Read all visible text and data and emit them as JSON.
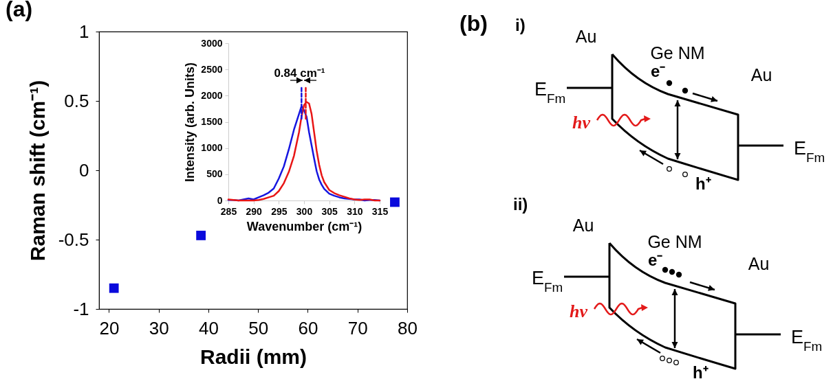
{
  "chart_data": [
    {
      "type": "scatter",
      "title": "(a)",
      "xlabel": "Radii (mm)",
      "ylabel": "Raman shift (cm⁻¹)",
      "xlim": [
        18,
        80
      ],
      "xticks": [
        20,
        30,
        40,
        50,
        60,
        70,
        80
      ],
      "ylim": [
        -1,
        1
      ],
      "yticks": [
        -1,
        -0.5,
        0,
        0.5,
        1
      ],
      "x": [
        21,
        38.5,
        77.5
      ],
      "marker": "square",
      "grid": false,
      "series": [
        {
          "color": "#0a0adc",
          "values": [
            -0.85,
            -0.47,
            -0.23
          ]
        }
      ]
    },
    {
      "type": "line",
      "xlabel": "Wavenumber (cm⁻¹)",
      "ylabel": "Intensity (arb. Units)",
      "xlim": [
        285,
        315
      ],
      "xticks": [
        285,
        290,
        295,
        300,
        305,
        310,
        315
      ],
      "ylim": [
        0,
        3000
      ],
      "yticks": [
        0,
        500,
        1000,
        1500,
        2000,
        2500,
        3000
      ],
      "grid": false,
      "annotations": [
        "0.84 cm⁻¹"
      ],
      "series": [
        {
          "color": "#1515e0",
          "x": [
            285,
            286,
            287,
            288,
            289,
            290,
            291,
            292,
            293,
            294,
            295,
            296,
            297,
            298,
            299,
            299.5,
            300,
            300.5,
            301,
            301.5,
            302,
            302.5,
            303,
            303.5,
            304,
            305,
            306,
            307,
            308,
            309,
            310,
            311,
            312,
            313,
            314,
            315
          ],
          "values": [
            10,
            10,
            0,
            20,
            40,
            20,
            60,
            100,
            150,
            230,
            420,
            650,
            980,
            1350,
            1650,
            1800,
            1720,
            1600,
            1300,
            1050,
            800,
            560,
            400,
            300,
            220,
            130,
            90,
            60,
            40,
            30,
            20,
            20,
            0,
            10,
            10,
            0
          ]
        },
        {
          "color": "#e81515",
          "x": [
            285,
            286,
            287,
            288,
            289,
            290,
            291,
            292,
            293,
            294,
            295,
            296,
            297,
            298,
            299,
            299.5,
            300,
            300.5,
            301,
            301.5,
            302,
            302.5,
            303,
            303.5,
            304,
            305,
            306,
            307,
            308,
            309,
            310,
            311,
            312,
            313,
            314,
            315
          ],
          "values": [
            20,
            10,
            0,
            0,
            0,
            0,
            10,
            30,
            60,
            90,
            180,
            330,
            550,
            850,
            1300,
            1600,
            1820,
            1880,
            1850,
            1650,
            1300,
            950,
            680,
            480,
            350,
            200,
            140,
            100,
            70,
            40,
            20,
            10,
            20,
            20,
            0,
            0
          ]
        },
        {
          "color": "#1515e0",
          "line_style": "dashed",
          "x": [
            299.5,
            299.5
          ],
          "values": [
            1560,
            2160
          ]
        },
        {
          "color": "#e81515",
          "line_style": "dashed",
          "x": [
            300.34,
            300.34
          ],
          "values": [
            1560,
            2160
          ]
        }
      ]
    },
    {
      "type": "other",
      "title": "(b)",
      "annotations": [
        "i)",
        "Au",
        "Ge NM",
        "e⁻",
        "Au",
        "E$_{Fm}$",
        "hν",
        "E$_{Fm}$",
        "h⁺",
        "ii)",
        "Au",
        "Ge NM",
        "e⁻",
        "Au",
        "E$_{Fm}$",
        "hν",
        "E$_{Fm}$",
        "h⁺"
      ]
    }
  ]
}
